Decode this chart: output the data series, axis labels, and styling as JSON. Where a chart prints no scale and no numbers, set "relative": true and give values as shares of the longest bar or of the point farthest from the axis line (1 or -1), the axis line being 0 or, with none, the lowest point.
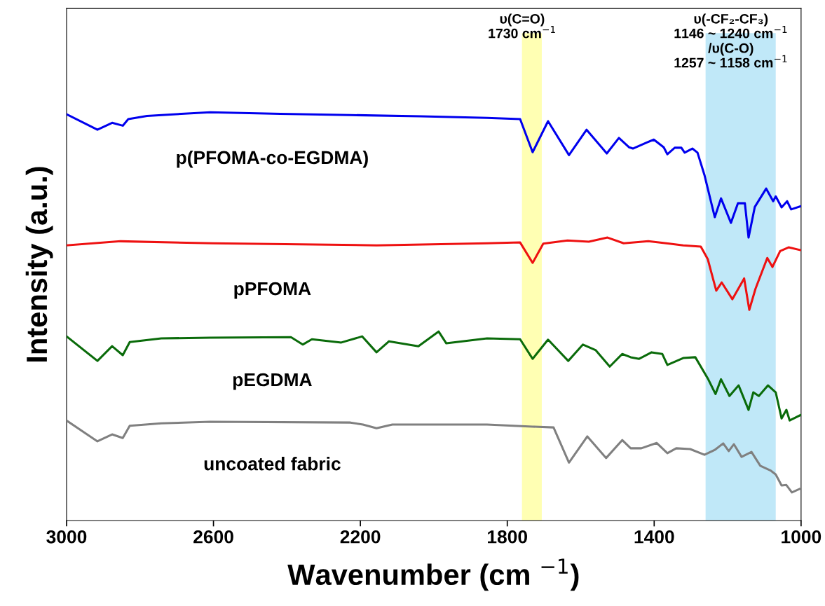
{
  "chart_data": {
    "type": "line",
    "relative": true,
    "xlabel": "Wavenumber (cm $^{−1}$)",
    "ylabel": "Intensity (a.u.)",
    "xlim": [
      3000,
      1000
    ],
    "xticks": [
      3000,
      2600,
      2200,
      1800,
      1400,
      1000
    ],
    "tick_labels": "x",
    "grid": false,
    "legend": false,
    "marker": "none",
    "line_style": "solid",
    "bands": [
      {
        "axis": "x",
        "from": 1760,
        "to": 1706,
        "label": "υ(C=O)\n1730 cm$^{−1}$",
        "color": "#ffffb3"
      },
      {
        "axis": "x",
        "from": 1260,
        "to": 1069,
        "label": "υ(-CF₂-CF₃)\n1146 ~ 1240 cm$^{−1}$\n/υ(C-O)\n1257 ~ 1158 cm$^{−1}$",
        "color": "#c0e8f8"
      }
    ],
    "series": [
      {
        "name": "p(PFOMA-co-EGDMA)",
        "color": "#0000ee",
        "x": [
          3000,
          2916,
          2876,
          2847,
          2832,
          2781,
          2609,
          2418,
          2227,
          2036,
          1855,
          1765,
          1731,
          1689,
          1632,
          1584,
          1529,
          1496,
          1468,
          1458,
          1420,
          1401,
          1374,
          1364,
          1344,
          1326,
          1317,
          1296,
          1282,
          1263,
          1235,
          1218,
          1191,
          1172,
          1153,
          1143,
          1126,
          1095,
          1076,
          1069,
          1053,
          1038,
          1027,
          1000
        ],
        "values": [
          0.995,
          0.957,
          0.974,
          0.967,
          0.983,
          0.991,
          1.0,
          0.996,
          0.993,
          0.99,
          0.986,
          0.983,
          0.902,
          0.978,
          0.895,
          0.957,
          0.899,
          0.937,
          0.914,
          0.911,
          0.926,
          0.933,
          0.914,
          0.897,
          0.913,
          0.913,
          0.901,
          0.911,
          0.901,
          0.846,
          0.743,
          0.789,
          0.729,
          0.777,
          0.777,
          0.693,
          0.768,
          0.813,
          0.782,
          0.794,
          0.767,
          0.782,
          0.762,
          0.77
        ]
      },
      {
        "name": "pPFOMA",
        "color": "#ee1111",
        "x": [
          3000,
          2853,
          2603,
          2156,
          1855,
          1765,
          1731,
          1702,
          1636,
          1578,
          1527,
          1483,
          1416,
          1359,
          1321,
          1273,
          1254,
          1231,
          1216,
          1187,
          1155,
          1141,
          1124,
          1092,
          1078,
          1057,
          1034,
          1000
        ],
        "values": [
          0.674,
          0.684,
          0.679,
          0.674,
          0.679,
          0.681,
          0.631,
          0.678,
          0.686,
          0.683,
          0.693,
          0.679,
          0.684,
          0.678,
          0.674,
          0.671,
          0.64,
          0.563,
          0.583,
          0.542,
          0.593,
          0.516,
          0.568,
          0.643,
          0.621,
          0.66,
          0.669,
          0.662
        ]
      },
      {
        "name": "pEGDMA",
        "color": "#0a6b0a",
        "x": [
          3000,
          2916,
          2876,
          2847,
          2828,
          2742,
          2609,
          2389,
          2357,
          2332,
          2252,
          2195,
          2156,
          2122,
          2042,
          1987,
          1966,
          1855,
          1765,
          1731,
          1689,
          1634,
          1594,
          1559,
          1521,
          1487,
          1464,
          1441,
          1407,
          1378,
          1364,
          1321,
          1288,
          1254,
          1233,
          1218,
          1195,
          1170,
          1143,
          1130,
          1115,
          1090,
          1069,
          1053,
          1040,
          1031,
          1000
        ],
        "values": [
          0.451,
          0.391,
          0.427,
          0.405,
          0.437,
          0.446,
          0.448,
          0.449,
          0.431,
          0.444,
          0.436,
          0.451,
          0.412,
          0.439,
          0.427,
          0.463,
          0.434,
          0.446,
          0.444,
          0.396,
          0.443,
          0.391,
          0.431,
          0.417,
          0.377,
          0.408,
          0.4,
          0.396,
          0.412,
          0.408,
          0.381,
          0.398,
          0.4,
          0.348,
          0.31,
          0.346,
          0.305,
          0.331,
          0.271,
          0.314,
          0.305,
          0.331,
          0.314,
          0.25,
          0.271,
          0.245,
          0.259
        ]
      },
      {
        "name": "uncoated fabric",
        "color": "#808080",
        "x": [
          3000,
          2916,
          2876,
          2847,
          2828,
          2742,
          2609,
          2227,
          2193,
          2156,
          2113,
          1855,
          1731,
          1674,
          1632,
          1582,
          1531,
          1487,
          1464,
          1435,
          1393,
          1364,
          1340,
          1302,
          1263,
          1235,
          1212,
          1197,
          1183,
          1162,
          1135,
          1111,
          1082,
          1069,
          1053,
          1040,
          1025,
          1000
        ],
        "values": [
          0.245,
          0.194,
          0.211,
          0.202,
          0.232,
          0.238,
          0.242,
          0.24,
          0.235,
          0.226,
          0.235,
          0.235,
          0.23,
          0.228,
          0.142,
          0.206,
          0.153,
          0.197,
          0.177,
          0.177,
          0.19,
          0.165,
          0.177,
          0.175,
          0.161,
          0.173,
          0.189,
          0.17,
          0.187,
          0.156,
          0.168,
          0.134,
          0.122,
          0.113,
          0.086,
          0.087,
          0.069,
          0.079
        ]
      }
    ]
  }
}
